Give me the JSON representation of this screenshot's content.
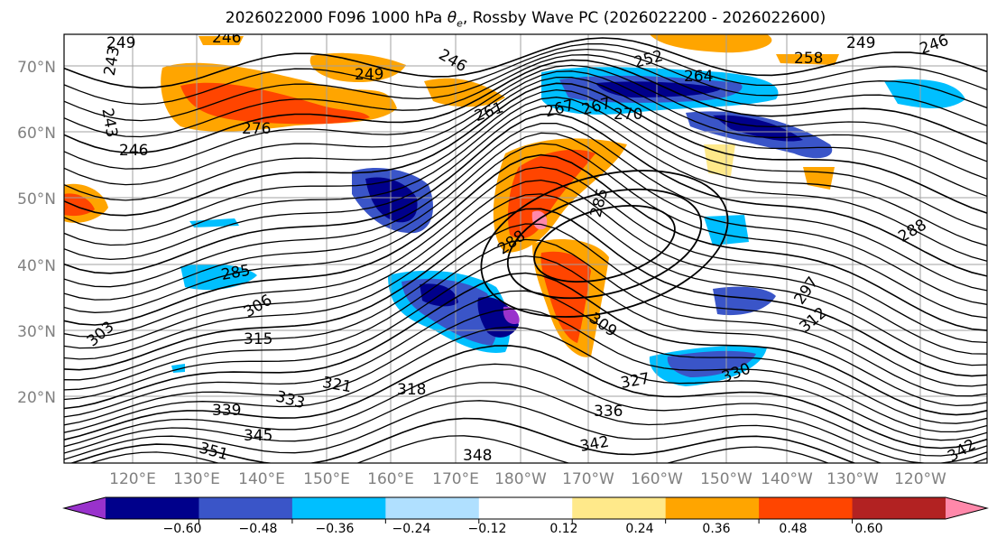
{
  "title": "2026022000 F096 1000 hPa θe, Rossby Wave PC (2026022200 - 2026022600)",
  "title_parts": {
    "prefix": "2026022000 F096 1000 hPa ",
    "theta": "θ",
    "theta_sub": "e",
    "suffix": ", Rossby Wave PC (2026022200 - 2026022600)"
  },
  "map": {
    "lat_labels": [
      "70°N",
      "60°N",
      "50°N",
      "40°N",
      "30°N",
      "20°N"
    ],
    "lon_labels": [
      "120°E",
      "130°E",
      "140°E",
      "150°E",
      "160°E",
      "170°E",
      "180°W",
      "170°W",
      "160°W",
      "150°W",
      "140°W",
      "130°W",
      "120°W"
    ],
    "contour_labels": [
      "249",
      "246",
      "243",
      "243",
      "246",
      "249",
      "246",
      "252",
      "258",
      "249",
      "246",
      "264",
      "267",
      "270",
      "276",
      "261",
      "267",
      "285",
      "288",
      "285",
      "288",
      "297",
      "303",
      "306",
      "309",
      "312",
      "315",
      "318",
      "321",
      "327",
      "330",
      "333",
      "336",
      "339",
      "342",
      "345",
      "348",
      "351",
      "342"
    ]
  },
  "colorbar": {
    "ticks": [
      "−0.60",
      "−0.48",
      "−0.36",
      "−0.24",
      "−0.12",
      "0.12",
      "0.24",
      "0.36",
      "0.48",
      "0.60"
    ],
    "colors": [
      "#9932cc",
      "#00008b",
      "#3a55c8",
      "#00bfff",
      "#b0e0ff",
      "#ffffff",
      "#ffe98a",
      "#ffa500",
      "#ff4500",
      "#b22222",
      "#ff88aa"
    ]
  }
}
